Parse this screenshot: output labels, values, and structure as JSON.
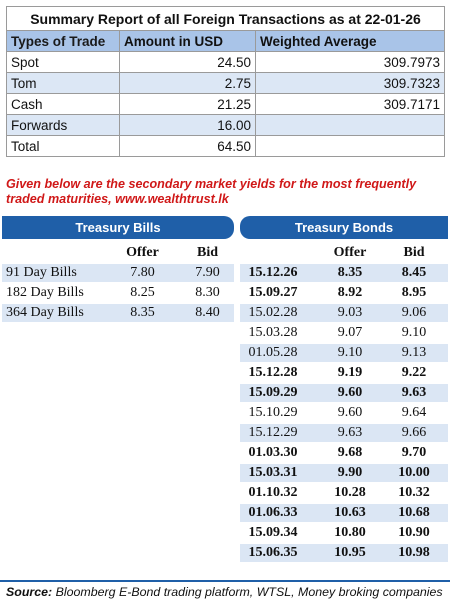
{
  "summary": {
    "title": "Summary Report of all Foreign Transactions as at 22-01-26",
    "headers": [
      "Types of Trade",
      "Amount in USD",
      "Weighted Average"
    ],
    "rows": [
      {
        "type": "Spot",
        "amount": "24.50",
        "weighted": "309.7973"
      },
      {
        "type": "Tom",
        "amount": "2.75",
        "weighted": "309.7323"
      },
      {
        "type": "Cash",
        "amount": "21.25",
        "weighted": "309.7171"
      },
      {
        "type": "Forwards",
        "amount": "16.00",
        "weighted": ""
      },
      {
        "type": "Total",
        "amount": "64.50",
        "weighted": ""
      }
    ]
  },
  "note": "Given below are the secondary market yields for the most frequently traded maturities, www.wealthtrust.lk",
  "bills": {
    "title": "Treasury Bills",
    "offer_label": "Offer",
    "bid_label": "Bid",
    "rows": [
      {
        "name": "91 Day Bills",
        "offer": "7.80",
        "bid": "7.90"
      },
      {
        "name": "182 Day Bills",
        "offer": "8.25",
        "bid": "8.30"
      },
      {
        "name": "364 Day Bills",
        "offer": "8.35",
        "bid": "8.40"
      }
    ]
  },
  "bonds": {
    "title": "Treasury Bonds",
    "offer_label": "Offer",
    "bid_label": "Bid",
    "rows": [
      {
        "date": "15.12.26",
        "offer": "8.35",
        "bid": "8.45",
        "bold": true
      },
      {
        "date": "15.09.27",
        "offer": "8.92",
        "bid": "8.95",
        "bold": true
      },
      {
        "date": "15.02.28",
        "offer": "9.03",
        "bid": "9.06",
        "bold": false
      },
      {
        "date": "15.03.28",
        "offer": "9.07",
        "bid": "9.10",
        "bold": false
      },
      {
        "date": "01.05.28",
        "offer": "9.10",
        "bid": "9.13",
        "bold": false
      },
      {
        "date": "15.12.28",
        "offer": "9.19",
        "bid": "9.22",
        "bold": true
      },
      {
        "date": "15.09.29",
        "offer": "9.60",
        "bid": "9.63",
        "bold": true
      },
      {
        "date": "15.10.29",
        "offer": "9.60",
        "bid": "9.64",
        "bold": false
      },
      {
        "date": "15.12.29",
        "offer": "9.63",
        "bid": "9.66",
        "bold": false
      },
      {
        "date": "01.03.30",
        "offer": "9.68",
        "bid": "9.70",
        "bold": true
      },
      {
        "date": "15.03.31",
        "offer": "9.90",
        "bid": "10.00",
        "bold": true
      },
      {
        "date": "01.10.32",
        "offer": "10.28",
        "bid": "10.32",
        "bold": true
      },
      {
        "date": "01.06.33",
        "offer": "10.63",
        "bid": "10.68",
        "bold": true
      },
      {
        "date": "15.09.34",
        "offer": "10.80",
        "bid": "10.90",
        "bold": true
      },
      {
        "date": "15.06.35",
        "offer": "10.95",
        "bid": "10.98",
        "bold": true
      }
    ]
  },
  "source": {
    "label": "Source:",
    "text": " Bloomberg E-Bond trading platform, WTSL, Money broking companies"
  },
  "colors": {
    "band_blue": "#1f5fa8",
    "header_blue": "#a9c4e8",
    "row_shade": "#dbe6f4",
    "note_red": "#d01818"
  }
}
